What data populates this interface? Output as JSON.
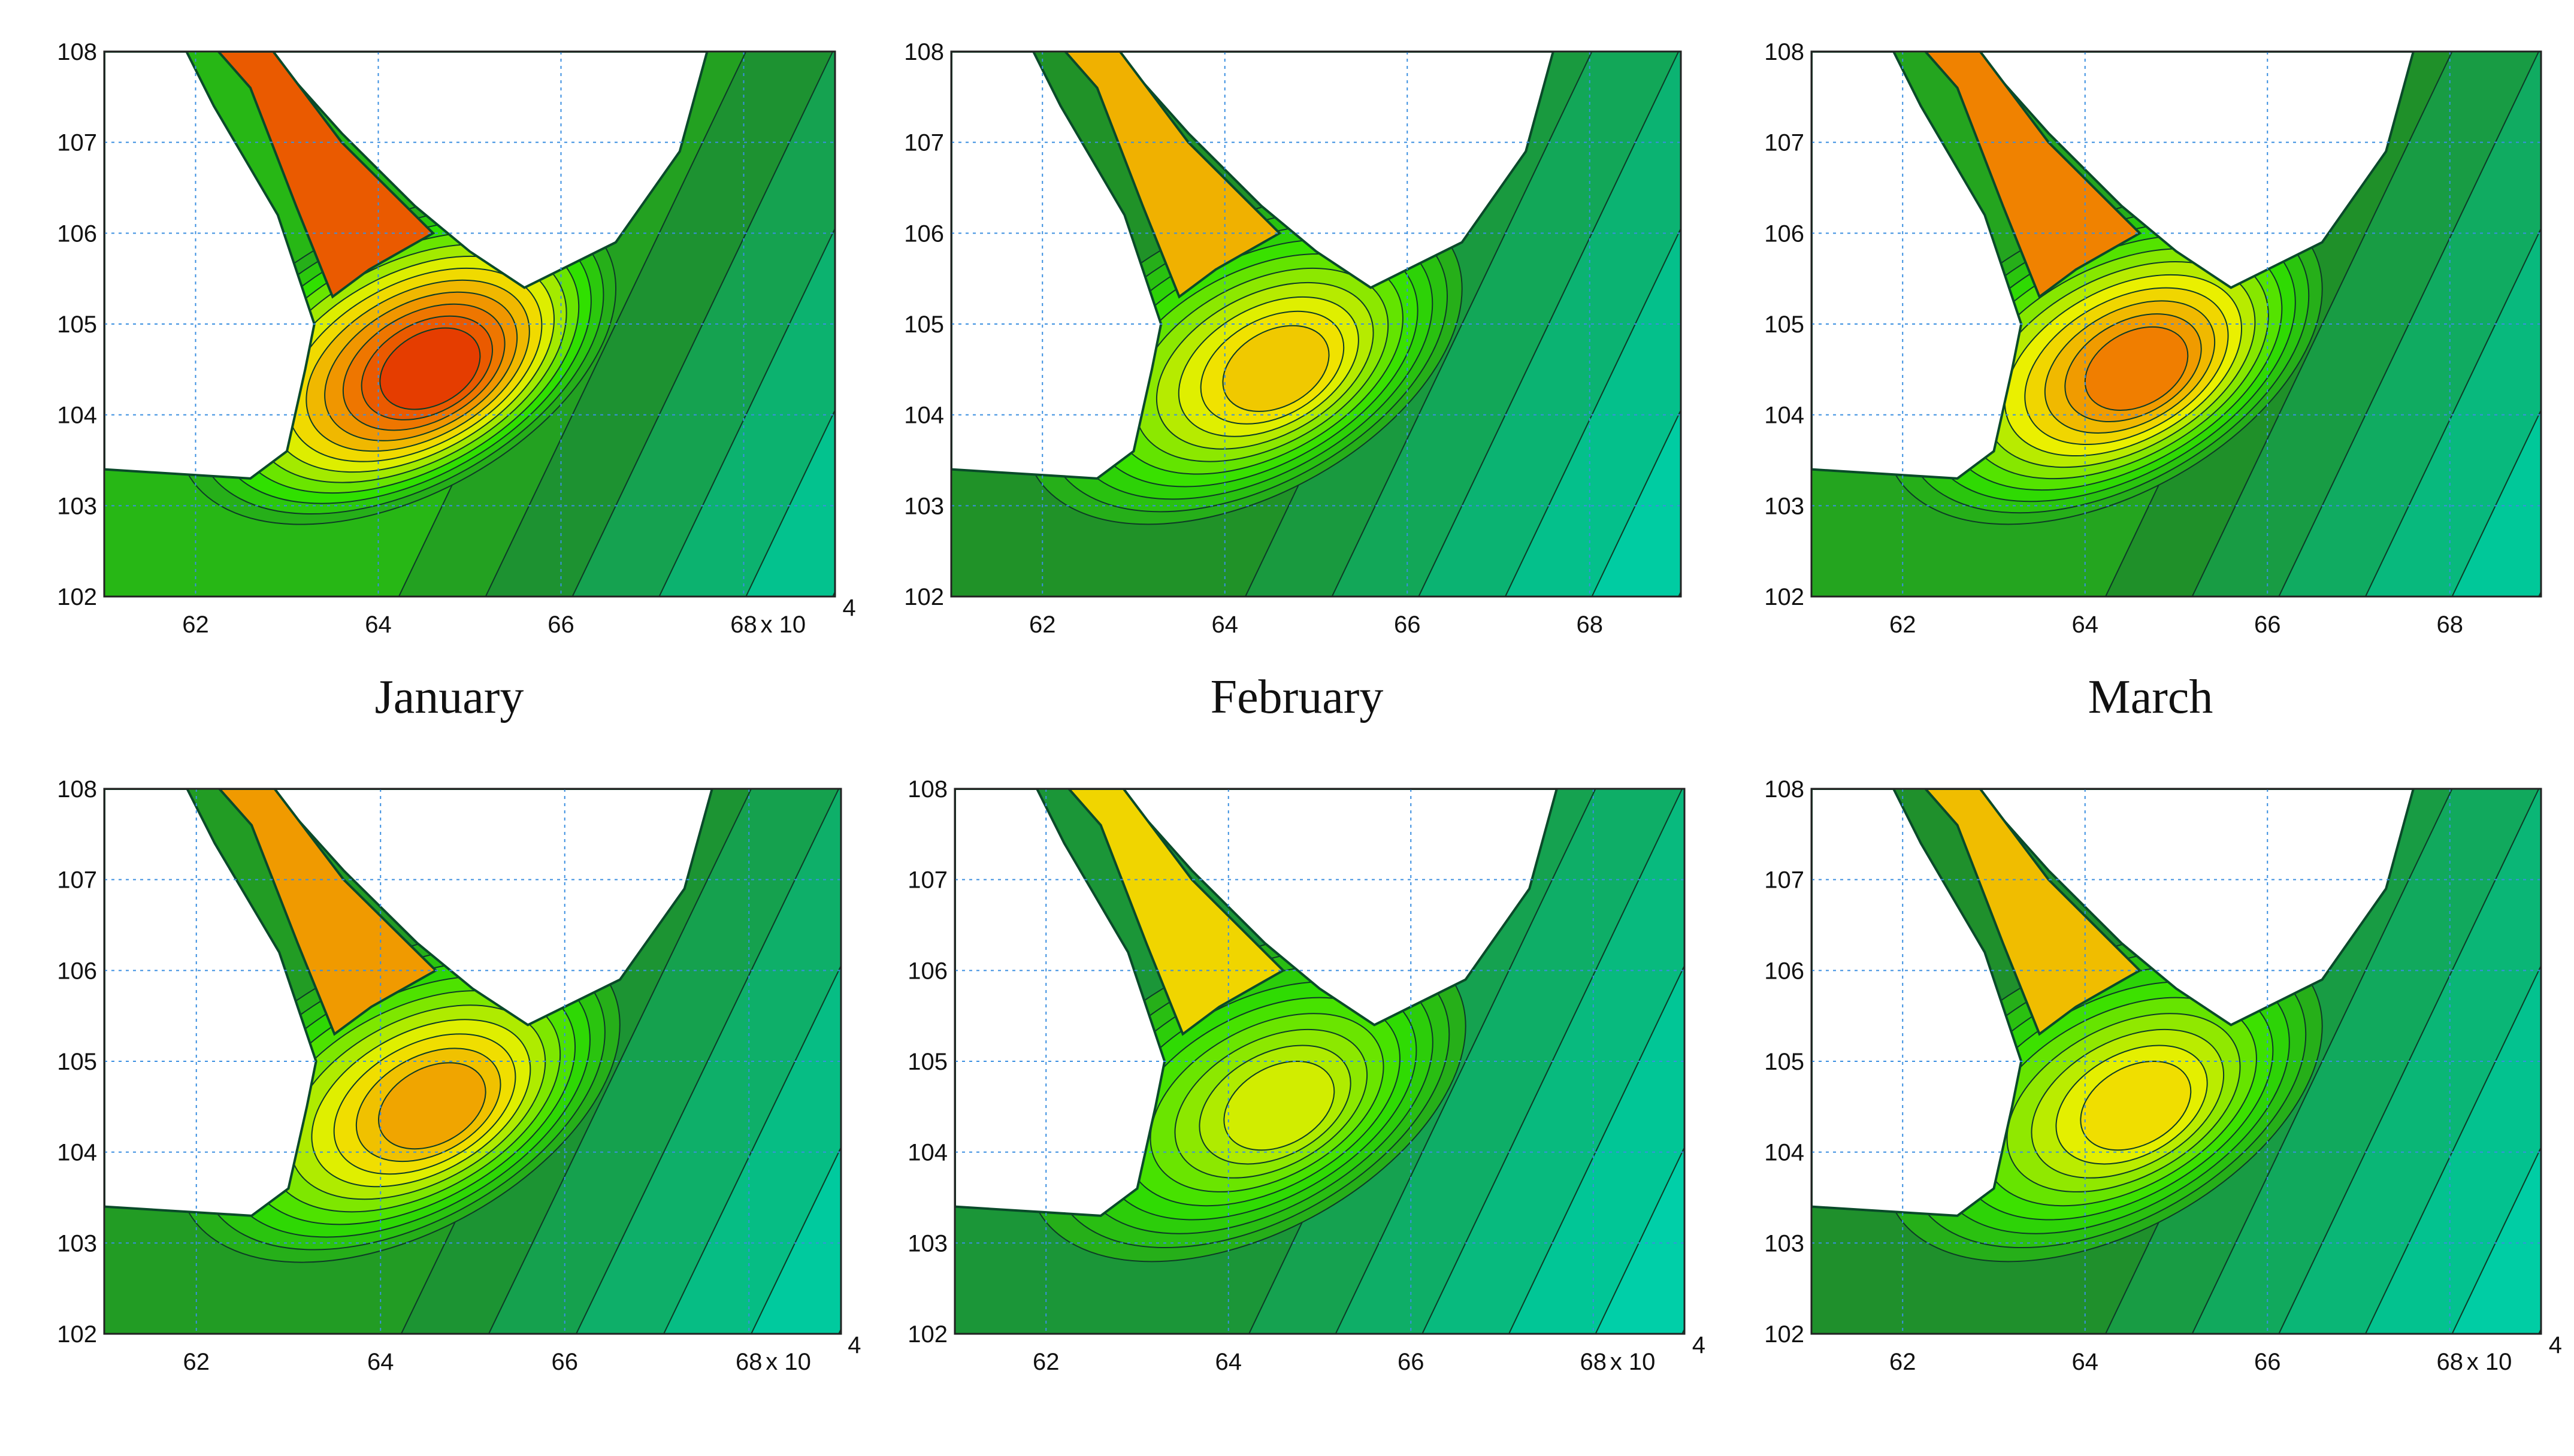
{
  "chart_data": [
    {
      "type": "contour",
      "title": "",
      "caption": "January",
      "xlim": [
        61,
        69
      ],
      "ylim": [
        102,
        108
      ],
      "x_ticks": [
        "62",
        "64",
        "66",
        "68"
      ],
      "x_multiplier": "x 10",
      "x_multiplier_exp": "4",
      "y_ticks": [
        "102",
        "103",
        "104",
        "105",
        "106",
        "107",
        "108"
      ],
      "grid": true,
      "intensity": 1.0
    },
    {
      "type": "contour",
      "title": "",
      "caption": "February",
      "xlim": [
        61,
        69
      ],
      "ylim": [
        102,
        108
      ],
      "x_ticks": [
        "62",
        "64",
        "66",
        "68"
      ],
      "x_multiplier": "",
      "x_multiplier_exp": "",
      "y_ticks": [
        "102",
        "103",
        "104",
        "105",
        "106",
        "107",
        "108"
      ],
      "grid": true,
      "intensity": 0.6
    },
    {
      "type": "contour",
      "title": "",
      "caption": "March",
      "xlim": [
        61,
        69
      ],
      "ylim": [
        102,
        108
      ],
      "x_ticks": [
        "62",
        "64",
        "66",
        "68"
      ],
      "x_multiplier": "",
      "x_multiplier_exp": "",
      "y_ticks": [
        "102",
        "103",
        "104",
        "105",
        "106",
        "107",
        "108"
      ],
      "grid": true,
      "intensity": 0.8
    },
    {
      "type": "contour",
      "title": "",
      "caption": "",
      "xlim": [
        61,
        69
      ],
      "ylim": [
        102,
        108
      ],
      "x_ticks": [
        "62",
        "64",
        "66",
        "68"
      ],
      "x_multiplier": "x 10",
      "x_multiplier_exp": "4",
      "y_ticks": [
        "102",
        "103",
        "104",
        "105",
        "106",
        "107",
        "108"
      ],
      "grid": true,
      "intensity": 0.7
    },
    {
      "type": "contour",
      "title": "",
      "caption": "",
      "xlim": [
        61,
        69
      ],
      "ylim": [
        102,
        108
      ],
      "x_ticks": [
        "62",
        "64",
        "66",
        "68"
      ],
      "x_multiplier": "x 10",
      "x_multiplier_exp": "4",
      "y_ticks": [
        "102",
        "103",
        "104",
        "105",
        "106",
        "107",
        "108"
      ],
      "grid": true,
      "intensity": 0.45
    },
    {
      "type": "contour",
      "title": "",
      "caption": "",
      "xlim": [
        61,
        69
      ],
      "ylim": [
        102,
        108
      ],
      "x_ticks": [
        "62",
        "64",
        "66",
        "68"
      ],
      "x_multiplier": "x 10",
      "x_multiplier_exp": "4",
      "y_ticks": [
        "102",
        "103",
        "104",
        "105",
        "106",
        "107",
        "108"
      ],
      "grid": true,
      "intensity": 0.55
    }
  ],
  "colors": {
    "sea": "#00f0f0",
    "grid": "#3b8fe0",
    "low": "#00c89a",
    "mid": "#1f8f2a",
    "high_green": "#30e000",
    "yellow": "#f0f000",
    "orange": "#f08000",
    "red": "#e02000",
    "land": "#ffffff",
    "coast": "#0a4a2a"
  }
}
